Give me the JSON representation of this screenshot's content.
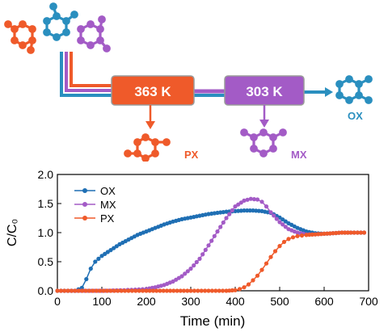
{
  "scheme": {
    "stage1_label": "363 K",
    "stage2_label": "303 K",
    "product1": "PX",
    "product2": "MX",
    "product3": "OX"
  },
  "colors": {
    "ox": "#1f6fb4",
    "mx": "#a35bc6",
    "px": "#ef5a2a",
    "teal": "#2a8fbf",
    "box_border": "#9a9a9a"
  },
  "chart_data": {
    "type": "line",
    "xlabel": "Time (min)",
    "ylabel": "C/C₀",
    "xlim": [
      0,
      700
    ],
    "ylim": [
      0,
      2.0
    ],
    "xticks": [
      "0",
      "100",
      "200",
      "300",
      "400",
      "500",
      "600",
      "700"
    ],
    "yticks": [
      "0.0",
      "0.5",
      "1.0",
      "1.5",
      "2.0"
    ],
    "legend_position": "top-left",
    "series": [
      {
        "name": "OX",
        "color": "#1f6fb4",
        "x": [
          0,
          40,
          55,
          65,
          75,
          85,
          100,
          120,
          140,
          160,
          180,
          200,
          220,
          240,
          260,
          280,
          300,
          320,
          340,
          360,
          380,
          400,
          420,
          440,
          460,
          480,
          500,
          520,
          540,
          560,
          580,
          600,
          620,
          640,
          660,
          690
        ],
        "y": [
          0,
          0,
          0.05,
          0.2,
          0.38,
          0.5,
          0.6,
          0.7,
          0.8,
          0.88,
          0.96,
          1.02,
          1.08,
          1.14,
          1.19,
          1.23,
          1.26,
          1.29,
          1.32,
          1.34,
          1.36,
          1.37,
          1.38,
          1.38,
          1.37,
          1.34,
          1.26,
          1.16,
          1.08,
          1.02,
          0.99,
          0.98,
          0.99,
          1.0,
          1.0,
          1.0
        ]
      },
      {
        "name": "MX",
        "color": "#a35bc6",
        "x": [
          0,
          100,
          150,
          200,
          220,
          240,
          260,
          280,
          300,
          320,
          340,
          360,
          380,
          400,
          420,
          435,
          450,
          460,
          470,
          480,
          500,
          520,
          540,
          560,
          580,
          600,
          620,
          640,
          660,
          690
        ],
        "y": [
          0,
          0,
          0.01,
          0.03,
          0.06,
          0.1,
          0.16,
          0.25,
          0.38,
          0.55,
          0.78,
          1.02,
          1.25,
          1.45,
          1.55,
          1.58,
          1.57,
          1.53,
          1.45,
          1.35,
          1.18,
          1.06,
          1.0,
          0.97,
          0.97,
          0.98,
          0.99,
          1.0,
          1.0,
          1.0
        ]
      },
      {
        "name": "PX",
        "color": "#ef5a2a",
        "x": [
          0,
          200,
          300,
          380,
          400,
          410,
          420,
          430,
          440,
          450,
          460,
          470,
          480,
          490,
          500,
          510,
          520,
          530,
          540,
          550,
          560,
          580,
          600,
          620,
          640,
          660,
          690
        ],
        "y": [
          0,
          0,
          0,
          0,
          0.01,
          0.03,
          0.06,
          0.11,
          0.18,
          0.26,
          0.36,
          0.47,
          0.58,
          0.68,
          0.77,
          0.84,
          0.89,
          0.92,
          0.94,
          0.95,
          0.96,
          0.97,
          0.98,
          0.99,
          1.0,
          1.0,
          1.0
        ]
      }
    ]
  }
}
